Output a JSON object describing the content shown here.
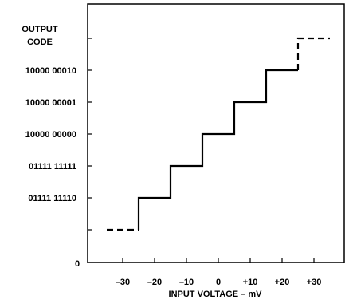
{
  "chart_data": {
    "type": "line",
    "title": "",
    "ylabel_lines": [
      "OUTPUT",
      "CODE"
    ],
    "xlabel": "INPUT VOLTAGE – mV",
    "x_ticks": [
      {
        "value": -30,
        "label": "–30"
      },
      {
        "value": -20,
        "label": "–20"
      },
      {
        "value": -10,
        "label": "–10"
      },
      {
        "value": 0,
        "label": "0"
      },
      {
        "value": 10,
        "label": "+10"
      },
      {
        "value": 20,
        "label": "+20"
      },
      {
        "value": 30,
        "label": "+30"
      }
    ],
    "y_ticks": [
      {
        "level": -3,
        "label": ""
      },
      {
        "level": -2,
        "label": "01111 11110"
      },
      {
        "level": -1,
        "label": "01111 11111"
      },
      {
        "level": 0,
        "label": "10000 00000"
      },
      {
        "level": 1,
        "label": "10000 00001"
      },
      {
        "level": 2,
        "label": "10000 00010"
      },
      {
        "level": 3,
        "label": ""
      }
    ],
    "origin_label": "0",
    "xlim": [
      -39,
      40
    ],
    "series": [
      {
        "style": "solid",
        "points": [
          [
            -25,
            -3
          ],
          [
            -25,
            -2
          ],
          [
            -15,
            -2
          ],
          [
            -15,
            -1
          ],
          [
            -5,
            -1
          ],
          [
            -5,
            0
          ],
          [
            5,
            0
          ],
          [
            5,
            1
          ],
          [
            15,
            1
          ],
          [
            15,
            2
          ],
          [
            25,
            2
          ]
        ]
      },
      {
        "style": "dashed",
        "points": [
          [
            -35,
            -3
          ],
          [
            -25,
            -3
          ]
        ]
      },
      {
        "style": "dashed",
        "points": [
          [
            25,
            2
          ],
          [
            25,
            3
          ],
          [
            35,
            3
          ]
        ]
      }
    ],
    "grid": false,
    "legend": "none"
  }
}
